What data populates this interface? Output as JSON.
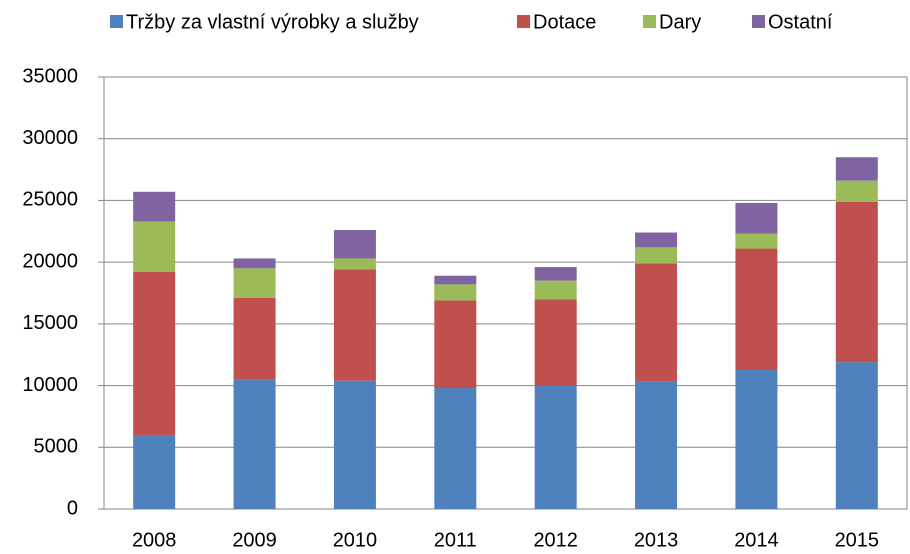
{
  "chart_data": {
    "type": "stacked_bar",
    "categories": [
      "2008",
      "2009",
      "2010",
      "2011",
      "2012",
      "2013",
      "2014",
      "2015"
    ],
    "series": [
      {
        "name": "Tržby za vlastní výrobky a služby",
        "color": "#4f81bd",
        "values": [
          6000,
          10500,
          10400,
          9800,
          10000,
          10300,
          11300,
          11900
        ]
      },
      {
        "name": "Dotace",
        "color": "#c0504d",
        "values": [
          13200,
          6600,
          9000,
          7100,
          7000,
          9600,
          9800,
          13000
        ]
      },
      {
        "name": "Dary",
        "color": "#9bbb59",
        "values": [
          4100,
          2400,
          900,
          1300,
          1500,
          1300,
          1200,
          1700
        ]
      },
      {
        "name": "Ostatní",
        "color": "#8064a2",
        "values": [
          2400,
          800,
          2300,
          700,
          1100,
          1200,
          2500,
          1900
        ]
      }
    ],
    "ylim": [
      0,
      35000
    ],
    "yticks": [
      0,
      5000,
      10000,
      15000,
      20000,
      25000,
      30000,
      35000
    ],
    "grid": true,
    "legend": "top"
  }
}
